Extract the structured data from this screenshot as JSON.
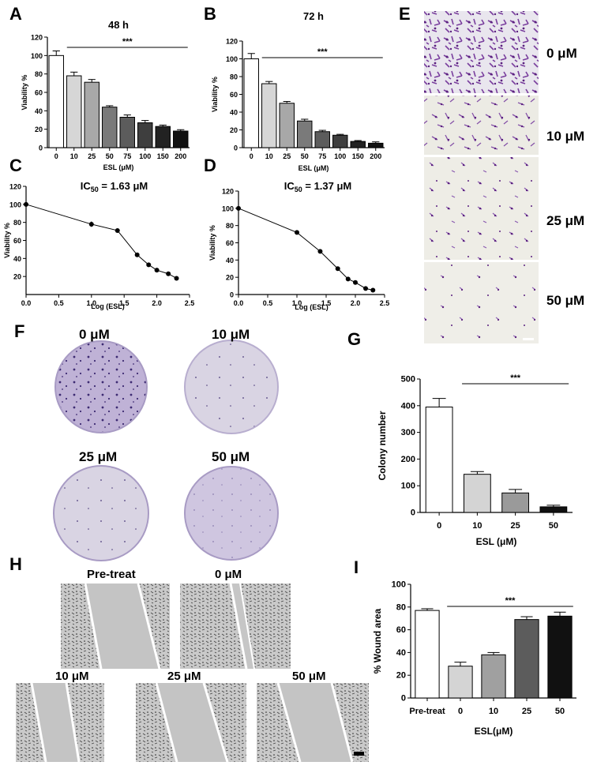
{
  "panel_letters": [
    "A",
    "B",
    "C",
    "D",
    "E",
    "F",
    "G",
    "H",
    "I"
  ],
  "significance_label": "***",
  "chart_data": [
    {
      "id": "A",
      "type": "bar",
      "title": "48 h",
      "xlabel": "ESL (μM)",
      "ylabel": "Viability %",
      "categories": [
        "0",
        "10",
        "25",
        "50",
        "75",
        "100",
        "150",
        "200"
      ],
      "values": [
        100,
        78,
        71,
        44,
        33,
        27,
        23,
        18
      ],
      "errors": [
        5,
        4,
        3,
        1.5,
        2.5,
        2.5,
        1.5,
        1.5
      ],
      "colors": [
        "#ffffff",
        "#d6d6d6",
        "#a8a8a8",
        "#7a7a7a",
        "#5c5c5c",
        "#3e3e3e",
        "#222222",
        "#111111"
      ],
      "ylim": [
        0,
        120
      ],
      "yticks": [
        0,
        20,
        40,
        60,
        80,
        100,
        120
      ],
      "significance": "***"
    },
    {
      "id": "B",
      "type": "bar",
      "title": "72 h",
      "xlabel": "ESL (μM)",
      "ylabel": "Viability %",
      "categories": [
        "0",
        "10",
        "25",
        "50",
        "75",
        "100",
        "150",
        "200"
      ],
      "values": [
        100,
        72,
        50,
        30,
        18,
        14,
        7,
        5
      ],
      "errors": [
        6,
        2.5,
        2,
        2,
        1.5,
        1,
        1,
        1.5
      ],
      "colors": [
        "#ffffff",
        "#d6d6d6",
        "#a8a8a8",
        "#7a7a7a",
        "#5c5c5c",
        "#3e3e3e",
        "#222222",
        "#111111"
      ],
      "ylim": [
        0,
        120
      ],
      "yticks": [
        0,
        20,
        40,
        60,
        80,
        100,
        120
      ],
      "significance": "***"
    },
    {
      "id": "C",
      "type": "line",
      "title_main": "IC",
      "title_sub": "50",
      "title_rest": " = 1.63 μM",
      "xlabel": "Log (ESL)",
      "ylabel": "Viability %",
      "x": [
        0,
        1.0,
        1.398,
        1.699,
        1.875,
        2.0,
        2.176,
        2.301
      ],
      "y": [
        100,
        78,
        71,
        44,
        33,
        27,
        23,
        18
      ],
      "errors": [
        3,
        3,
        2,
        1,
        1,
        1,
        1,
        1
      ],
      "xlim": [
        0,
        2.5
      ],
      "ylim": [
        0,
        120
      ],
      "xticks": [
        "0.0",
        "0.5",
        "1.0",
        "1.5",
        "2.0",
        "2.5"
      ],
      "yticks": [
        20,
        40,
        60,
        80,
        100,
        120
      ]
    },
    {
      "id": "D",
      "type": "line",
      "title_main": "IC",
      "title_sub": "50",
      "title_rest": " = 1.37 μM",
      "xlabel": "Log (ESL)",
      "ylabel": "Viability %",
      "x": [
        0,
        1.0,
        1.398,
        1.699,
        1.875,
        2.0,
        2.176,
        2.301
      ],
      "y": [
        100,
        72,
        50,
        30,
        18,
        14,
        7,
        5
      ],
      "errors": [
        2,
        1.5,
        1,
        1,
        1,
        1,
        1,
        1
      ],
      "xlim": [
        0,
        2.5
      ],
      "ylim": [
        0,
        120
      ],
      "xticks": [
        "0.0",
        "0.5",
        "1.0",
        "1.5",
        "2.0",
        "2.5"
      ],
      "yticks": [
        0,
        20,
        40,
        60,
        80,
        100,
        120
      ]
    },
    {
      "id": "G",
      "type": "bar",
      "xlabel": "ESL (μM)",
      "ylabel": "Colony number",
      "categories": [
        "0",
        "10",
        "25",
        "50"
      ],
      "values": [
        395,
        143,
        73,
        21
      ],
      "errors": [
        32,
        10,
        13,
        6
      ],
      "colors": [
        "#ffffff",
        "#d4d4d4",
        "#9a9a9a",
        "#111111"
      ],
      "ylim": [
        0,
        500
      ],
      "yticks": [
        0,
        100,
        200,
        300,
        400,
        500
      ],
      "significance": "***"
    },
    {
      "id": "I",
      "type": "bar",
      "xlabel": "ESL(μM)",
      "ylabel": "% Wound area",
      "categories": [
        "Pre-treat",
        "0",
        "10",
        "25",
        "50"
      ],
      "values": [
        77,
        28,
        38,
        69,
        72
      ],
      "errors": [
        1.5,
        3.5,
        2,
        2.5,
        3.5
      ],
      "colors": [
        "#ffffff",
        "#d4d4d4",
        "#a0a0a0",
        "#5c5c5c",
        "#111111"
      ],
      "ylim": [
        0,
        100
      ],
      "yticks": [
        0,
        20,
        40,
        60,
        80,
        100
      ],
      "significance": "***"
    }
  ],
  "panel_E": {
    "labels": [
      "0 μM",
      "10 μM",
      "25 μM",
      "50 μM"
    ]
  },
  "panel_F": {
    "labels": [
      "0 μM",
      "10 μM",
      "25 μM",
      "50 μM"
    ]
  },
  "panel_H": {
    "labels": [
      "Pre-treat",
      "0 μM",
      "10 μM",
      "25 μM",
      "50 μM"
    ]
  }
}
